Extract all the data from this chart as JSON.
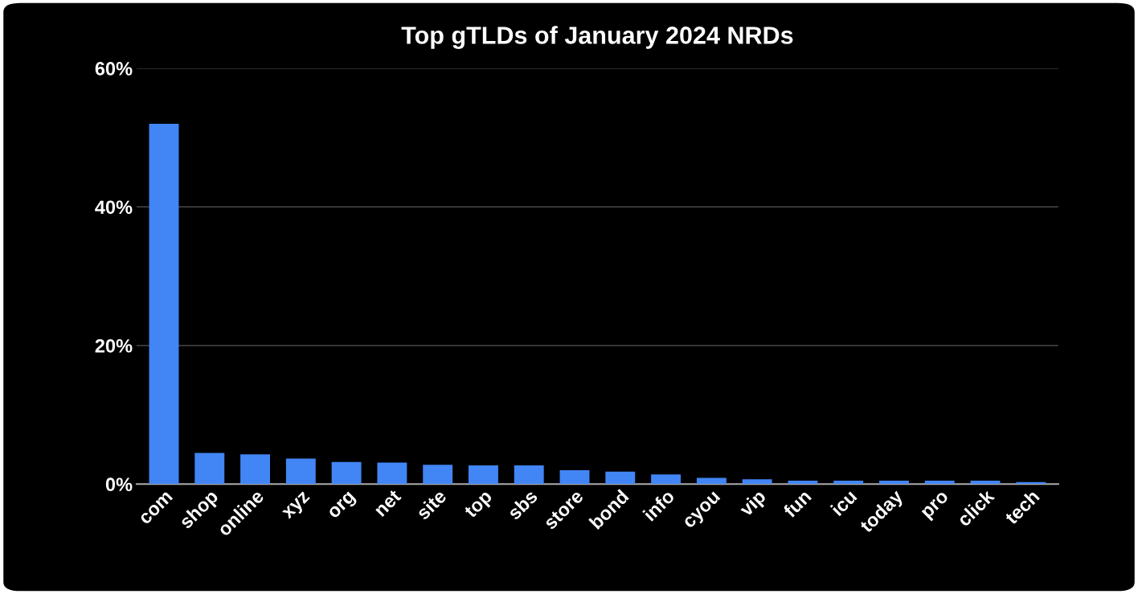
{
  "chart_data": {
    "type": "bar",
    "title": "Top gTLDs of January 2024 NRDs",
    "categories": [
      "com",
      "shop",
      "online",
      "xyz",
      "org",
      "net",
      "site",
      "top",
      "sbs",
      "store",
      "bond",
      "info",
      "cyou",
      "vip",
      "fun",
      "icu",
      "today",
      "pro",
      "click",
      "tech"
    ],
    "values": [
      52.0,
      4.5,
      4.3,
      3.7,
      3.2,
      3.1,
      2.8,
      2.7,
      2.7,
      2.0,
      1.8,
      1.4,
      0.9,
      0.7,
      0.5,
      0.5,
      0.5,
      0.5,
      0.5,
      0.3
    ],
    "color": "#4285f4",
    "ylim": [
      0,
      60
    ],
    "yticks": [
      {
        "value": 0,
        "label": "0%"
      },
      {
        "value": 20,
        "label": "20%"
      },
      {
        "value": 40,
        "label": "40%"
      },
      {
        "value": 60,
        "label": "60%"
      }
    ],
    "grid": "y"
  }
}
